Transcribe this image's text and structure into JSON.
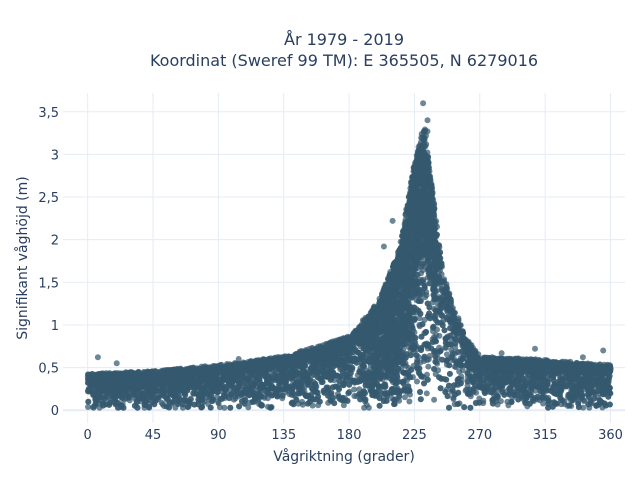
{
  "chart_data": {
    "type": "scatter",
    "title_line1": "År 1979 - 2019",
    "title_line2": "Koordinat (Sweref 99 TM): E 365505, N 6279016",
    "xlabel": "Vågriktning (grader)",
    "ylabel": "Signifikant våghöjd (m)",
    "xlim": [
      -17,
      370
    ],
    "ylim": [
      -0.15,
      3.72
    ],
    "x_ticks": [
      0,
      45,
      90,
      135,
      180,
      225,
      270,
      315,
      360
    ],
    "x_tick_labels": [
      "0",
      "45",
      "90",
      "135",
      "180",
      "225",
      "270",
      "315",
      "360"
    ],
    "y_ticks": [
      0,
      0.5,
      1,
      1.5,
      2,
      2.5,
      3,
      3.5
    ],
    "y_tick_labels": [
      "0",
      "0,5",
      "1",
      "1,5",
      "2",
      "2,5",
      "3",
      "3,5"
    ],
    "marker_color": "#34596f",
    "background_color": "#ffffff",
    "grid_color": "#e5ecf6",
    "grid": true,
    "envelope": {
      "direction": [
        0,
        45,
        90,
        135,
        180,
        200,
        215,
        225,
        232,
        238,
        245,
        260,
        270,
        315,
        360
      ],
      "max_height": [
        0.42,
        0.45,
        0.52,
        0.62,
        0.85,
        1.25,
        1.9,
        2.9,
        3.3,
        2.5,
        1.55,
        0.85,
        0.62,
        0.58,
        0.52
      ]
    },
    "outliers": [
      {
        "x": 231,
        "y": 3.6
      },
      {
        "x": 234,
        "y": 3.4
      },
      {
        "x": 230,
        "y": 3.24
      },
      {
        "x": 233,
        "y": 3.22
      },
      {
        "x": 234,
        "y": 3.27
      },
      {
        "x": 228,
        "y": 3.05
      },
      {
        "x": 225,
        "y": 2.85
      },
      {
        "x": 210,
        "y": 2.22
      },
      {
        "x": 204,
        "y": 1.92
      },
      {
        "x": 248,
        "y": 1.34
      },
      {
        "x": 7,
        "y": 0.62
      },
      {
        "x": 20,
        "y": 0.55
      },
      {
        "x": 104,
        "y": 0.6
      },
      {
        "x": 355,
        "y": 0.7
      },
      {
        "x": 341,
        "y": 0.62
      },
      {
        "x": 308,
        "y": 0.72
      },
      {
        "x": 285,
        "y": 0.67
      }
    ]
  }
}
